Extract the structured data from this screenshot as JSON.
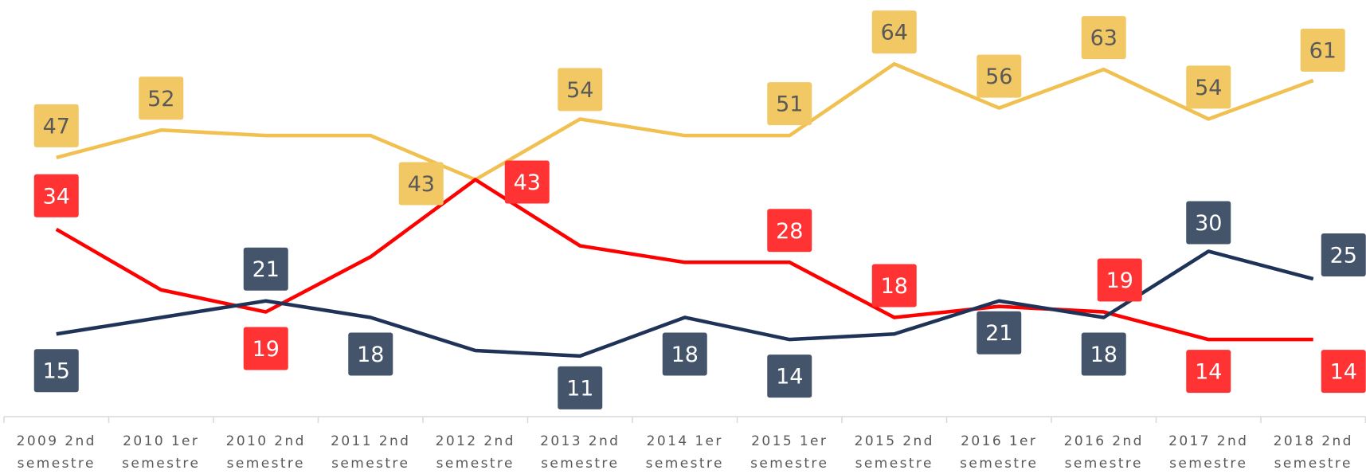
{
  "chart_data": {
    "type": "line",
    "categories": [
      "2009 2nd semestre",
      "2010 1er semestre",
      "2010 2nd semestre",
      "2011 2nd semestre",
      "2012 2nd semestre",
      "2013 2nd semestre",
      "2014 1er semestre",
      "2015 1er semestre",
      "2015 2nd semestre",
      "2016 1er semestre",
      "2016 2nd semestre",
      "2017 2nd semestre",
      "2018 2nd semestre"
    ],
    "series": [
      {
        "color": "#f0c050",
        "label_color": "#f2c865",
        "label_text_color": "#595959",
        "values": [
          47,
          52,
          51,
          51,
          43,
          54,
          51,
          51,
          64,
          56,
          63,
          54,
          61
        ],
        "value_labels": [
          "47",
          "52",
          null,
          null,
          "43",
          "54",
          null,
          "51",
          "64",
          "56",
          "63",
          "54",
          "61"
        ]
      },
      {
        "color": "#ff0000",
        "label_color": "#ff3333",
        "label_text_color": "#ffffff",
        "values": [
          34,
          23,
          19,
          29,
          43,
          31,
          28,
          28,
          18,
          20,
          19,
          14,
          14
        ],
        "value_labels": [
          "34",
          null,
          "19",
          null,
          "43",
          null,
          null,
          "28",
          "18",
          null,
          "19",
          "14",
          "14"
        ]
      },
      {
        "color": "#1f3358",
        "label_color": "#44546a",
        "label_text_color": "#ffffff",
        "values": [
          15,
          18,
          21,
          18,
          12,
          11,
          18,
          14,
          15,
          21,
          18,
          30,
          25
        ],
        "value_labels": [
          "15",
          null,
          "21",
          "18",
          null,
          "11",
          "18",
          "14",
          null,
          "21",
          "18",
          "30",
          "25"
        ]
      }
    ],
    "ylim": [
      0,
      75.6
    ]
  }
}
